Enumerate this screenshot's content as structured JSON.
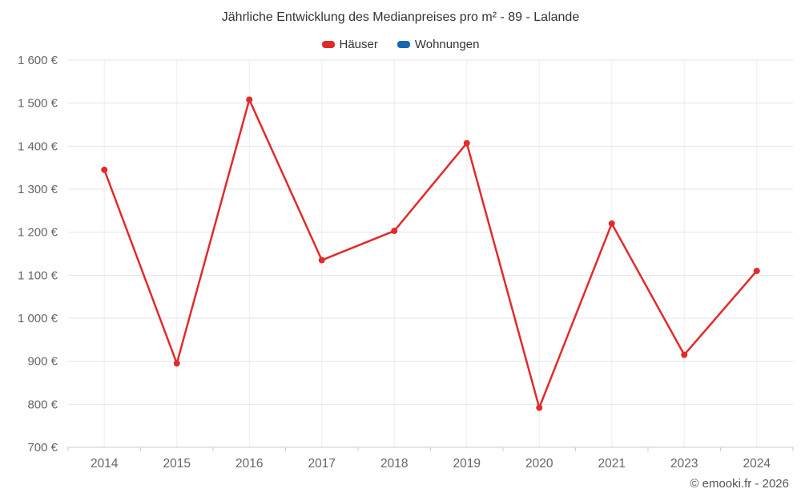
{
  "title": "Jährliche Entwicklung des Medianpreises pro m² - 89 - Lalande",
  "legend": {
    "items": [
      {
        "label": "Häuser",
        "color": "#e12b2b"
      },
      {
        "label": "Wohnungen",
        "color": "#1668b0"
      }
    ]
  },
  "footer": {
    "copyright": "© emooki.fr - 2026"
  },
  "chart_data": {
    "type": "line",
    "title": "Jährliche Entwicklung des Medianpreises pro m² - 89 - Lalande",
    "categories": [
      "2014",
      "2015",
      "2016",
      "2017",
      "2018",
      "2019",
      "2020",
      "2021",
      "2023",
      "2024"
    ],
    "series": [
      {
        "name": "Häuser",
        "color": "#e12b2b",
        "values": [
          1345,
          895,
          1508,
          1135,
          1203,
          1407,
          792,
          1220,
          915,
          1110
        ]
      },
      {
        "name": "Wohnungen",
        "color": "#1668b0",
        "values": []
      }
    ],
    "xlabel": "",
    "ylabel": "",
    "ylim": [
      700,
      1600
    ],
    "yticks": [
      700,
      800,
      900,
      1000,
      1100,
      1200,
      1300,
      1400,
      1500,
      1600
    ],
    "ytick_suffix": " €",
    "grid": true,
    "legend_position": "top",
    "colors": {
      "grid_horizontal": "#e6e6e6",
      "grid_vertical": "#ededed",
      "axis_line": "#cccccc",
      "axis_text": "#666666"
    }
  }
}
